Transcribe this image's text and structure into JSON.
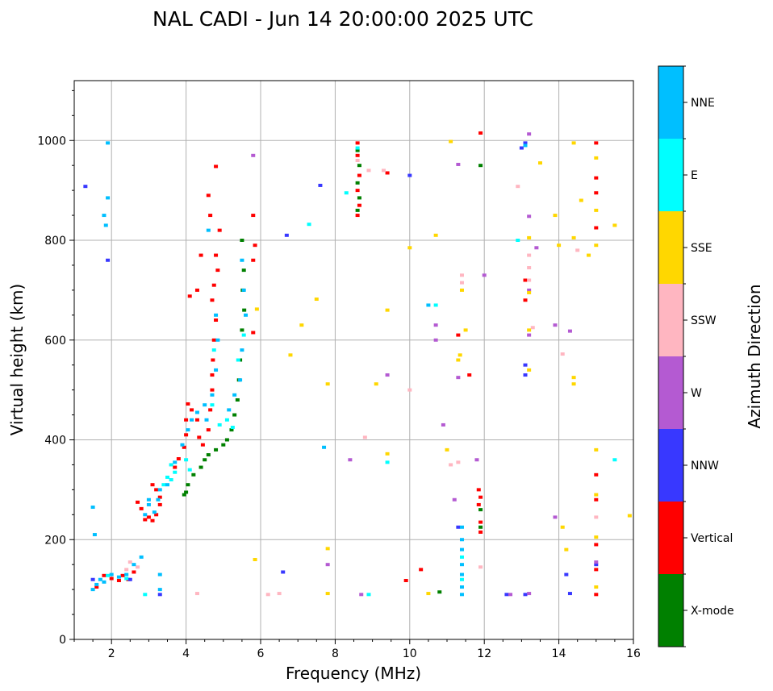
{
  "chart_data": {
    "type": "scatter",
    "title": "NAL CADI - Jun 14 20:00:00 2025 UTC",
    "xlabel": "Frequency (MHz)",
    "ylabel": "Virtual height (km)",
    "xlim": [
      1,
      16
    ],
    "ylim": [
      0,
      1120
    ],
    "xticks": [
      2,
      4,
      6,
      8,
      10,
      12,
      14,
      16
    ],
    "xtick_labels": [
      "2",
      "4",
      "6",
      "8",
      "10",
      "12",
      "14",
      "16"
    ],
    "yticks": [
      0,
      200,
      400,
      600,
      800,
      1000
    ],
    "ytick_labels": [
      "0",
      "200",
      "400",
      "600",
      "800",
      "1000"
    ],
    "grid": true,
    "colorbar": {
      "label": "Azimuth Direction",
      "categories": [
        {
          "name": "X-mode",
          "color": "#008000"
        },
        {
          "name": "Vertical",
          "color": "#ff0000"
        },
        {
          "name": "NNW",
          "color": "#3838ff"
        },
        {
          "name": "W",
          "color": "#b45ad2"
        },
        {
          "name": "SSW",
          "color": "#ffb6c1"
        },
        {
          "name": "SSE",
          "color": "#ffd700"
        },
        {
          "name": "E",
          "color": "#00ffff"
        },
        {
          "name": "NNE",
          "color": "#00bfff"
        }
      ]
    },
    "series": [
      {
        "name": "X-mode",
        "points": [
          [
            5.5,
            800
          ],
          [
            5.55,
            740
          ],
          [
            5.52,
            700
          ],
          [
            5.56,
            660
          ],
          [
            5.5,
            620
          ],
          [
            5.45,
            560
          ],
          [
            5.42,
            520
          ],
          [
            5.38,
            480
          ],
          [
            5.3,
            450
          ],
          [
            5.22,
            420
          ],
          [
            5.1,
            400
          ],
          [
            5.0,
            390
          ],
          [
            4.8,
            380
          ],
          [
            4.6,
            370
          ],
          [
            4.5,
            360
          ],
          [
            4.4,
            345
          ],
          [
            4.2,
            330
          ],
          [
            4.05,
            310
          ],
          [
            4.0,
            295
          ],
          [
            3.95,
            290
          ],
          [
            8.6,
            980
          ],
          [
            8.65,
            950
          ],
          [
            8.6,
            915
          ],
          [
            8.65,
            885
          ],
          [
            8.6,
            860
          ],
          [
            11.9,
            950
          ],
          [
            11.9,
            260
          ],
          [
            11.9,
            225
          ],
          [
            10.8,
            95
          ]
        ]
      },
      {
        "name": "Vertical",
        "points": [
          [
            2.9,
            240
          ],
          [
            3.0,
            245
          ],
          [
            3.1,
            238
          ],
          [
            3.2,
            250
          ],
          [
            3.3,
            270
          ],
          [
            2.8,
            262
          ],
          [
            2.7,
            275
          ],
          [
            3.3,
            285
          ],
          [
            3.2,
            300
          ],
          [
            3.1,
            310
          ],
          [
            3.7,
            345
          ],
          [
            3.8,
            362
          ],
          [
            3.95,
            385
          ],
          [
            4.0,
            410
          ],
          [
            4.0,
            440
          ],
          [
            4.05,
            472
          ],
          [
            4.15,
            460
          ],
          [
            4.3,
            440
          ],
          [
            4.35,
            405
          ],
          [
            4.45,
            390
          ],
          [
            4.6,
            420
          ],
          [
            4.65,
            460
          ],
          [
            4.7,
            500
          ],
          [
            4.7,
            530
          ],
          [
            4.72,
            560
          ],
          [
            4.75,
            600
          ],
          [
            4.8,
            640
          ],
          [
            4.7,
            680
          ],
          [
            4.75,
            710
          ],
          [
            4.85,
            740
          ],
          [
            4.8,
            770
          ],
          [
            4.9,
            820
          ],
          [
            4.65,
            850
          ],
          [
            4.6,
            890
          ],
          [
            4.8,
            948
          ],
          [
            4.4,
            770
          ],
          [
            4.1,
            688
          ],
          [
            4.3,
            700
          ],
          [
            1.8,
            128
          ],
          [
            2.0,
            122
          ],
          [
            2.2,
            118
          ],
          [
            2.3,
            128
          ],
          [
            2.6,
            135
          ],
          [
            2.45,
            120
          ],
          [
            1.6,
            105
          ],
          [
            8.6,
            995
          ],
          [
            8.6,
            970
          ],
          [
            8.65,
            930
          ],
          [
            8.6,
            900
          ],
          [
            8.65,
            870
          ],
          [
            8.6,
            850
          ],
          [
            9.4,
            935
          ],
          [
            15.0,
            995
          ],
          [
            15.0,
            925
          ],
          [
            15.0,
            895
          ],
          [
            15.0,
            825
          ],
          [
            15.0,
            330
          ],
          [
            15.0,
            280
          ],
          [
            15.0,
            190
          ],
          [
            15.0,
            140
          ],
          [
            15.0,
            90
          ],
          [
            11.85,
            300
          ],
          [
            11.9,
            285
          ],
          [
            11.85,
            270
          ],
          [
            11.9,
            235
          ],
          [
            11.9,
            215
          ],
          [
            11.9,
            1015
          ],
          [
            11.6,
            530
          ],
          [
            11.3,
            610
          ],
          [
            5.8,
            850
          ],
          [
            5.85,
            790
          ],
          [
            5.8,
            760
          ],
          [
            5.8,
            615
          ],
          [
            10.3,
            140
          ],
          [
            9.9,
            118
          ],
          [
            13.1,
            720
          ],
          [
            13.1,
            680
          ]
        ]
      },
      {
        "name": "NNW",
        "points": [
          [
            6.7,
            810
          ],
          [
            7.6,
            910
          ],
          [
            10.0,
            930
          ],
          [
            11.3,
            225
          ],
          [
            13.1,
            530
          ],
          [
            13.1,
            550
          ],
          [
            13.0,
            985
          ],
          [
            13.1,
            995
          ],
          [
            14.2,
            130
          ],
          [
            14.3,
            92
          ],
          [
            15.0,
            150
          ],
          [
            13.1,
            90
          ],
          [
            12.6,
            90
          ],
          [
            3.3,
            90
          ],
          [
            2.5,
            120
          ],
          [
            1.5,
            120
          ],
          [
            1.3,
            908
          ],
          [
            6.6,
            135
          ],
          [
            1.9,
            760
          ]
        ]
      },
      {
        "name": "W",
        "points": [
          [
            13.2,
            1013
          ],
          [
            13.2,
            848
          ],
          [
            13.4,
            785
          ],
          [
            13.2,
            700
          ],
          [
            13.2,
            610
          ],
          [
            13.9,
            630
          ],
          [
            14.3,
            618
          ],
          [
            10.7,
            630
          ],
          [
            11.3,
            525
          ],
          [
            10.9,
            430
          ],
          [
            10.7,
            600
          ],
          [
            12.0,
            730
          ],
          [
            8.4,
            360
          ],
          [
            9.4,
            530
          ],
          [
            11.2,
            280
          ],
          [
            13.9,
            245
          ],
          [
            13.2,
            92
          ],
          [
            12.7,
            90
          ],
          [
            8.7,
            90
          ],
          [
            15.0,
            155
          ],
          [
            5.8,
            970
          ],
          [
            11.3,
            952
          ],
          [
            11.8,
            360
          ],
          [
            7.8,
            150
          ]
        ]
      },
      {
        "name": "SSW",
        "points": [
          [
            12.9,
            908
          ],
          [
            13.2,
            770
          ],
          [
            13.2,
            745
          ],
          [
            13.3,
            625
          ],
          [
            13.2,
            720
          ],
          [
            14.1,
            572
          ],
          [
            11.4,
            730
          ],
          [
            11.4,
            715
          ],
          [
            11.1,
            350
          ],
          [
            10.0,
            500
          ],
          [
            8.8,
            405
          ],
          [
            8.9,
            940
          ],
          [
            8.6,
            960
          ],
          [
            15.0,
            245
          ],
          [
            14.5,
            780
          ],
          [
            11.9,
            145
          ],
          [
            4.3,
            92
          ],
          [
            6.5,
            92
          ],
          [
            6.2,
            90
          ],
          [
            2.7,
            145
          ],
          [
            2.5,
            155
          ],
          [
            2.4,
            140
          ],
          [
            9.3,
            940
          ],
          [
            11.3,
            355
          ]
        ]
      },
      {
        "name": "SSE",
        "points": [
          [
            15.0,
            965
          ],
          [
            15.0,
            860
          ],
          [
            15.0,
            790
          ],
          [
            15.0,
            380
          ],
          [
            15.0,
            290
          ],
          [
            15.0,
            205
          ],
          [
            15.0,
            105
          ],
          [
            14.8,
            770
          ],
          [
            14.6,
            880
          ],
          [
            14.4,
            995
          ],
          [
            13.5,
            955
          ],
          [
            13.2,
            805
          ],
          [
            13.2,
            695
          ],
          [
            13.2,
            620
          ],
          [
            13.2,
            540
          ],
          [
            13.9,
            850
          ],
          [
            14.1,
            225
          ],
          [
            14.2,
            180
          ],
          [
            14.4,
            525
          ],
          [
            14.4,
            512
          ],
          [
            15.5,
            830
          ],
          [
            15.9,
            248
          ],
          [
            10.0,
            785
          ],
          [
            10.7,
            810
          ],
          [
            11.3,
            560
          ],
          [
            11.35,
            570
          ],
          [
            11.1,
            998
          ],
          [
            11.0,
            380
          ],
          [
            9.4,
            660
          ],
          [
            9.1,
            512
          ],
          [
            9.4,
            372
          ],
          [
            7.8,
            512
          ],
          [
            7.1,
            630
          ],
          [
            6.8,
            570
          ],
          [
            7.5,
            682
          ],
          [
            5.85,
            160
          ],
          [
            5.9,
            662
          ],
          [
            7.8,
            92
          ],
          [
            7.8,
            182
          ],
          [
            10.5,
            92
          ],
          [
            11.4,
            700
          ],
          [
            11.5,
            620
          ],
          [
            14.0,
            790
          ],
          [
            14.4,
            805
          ]
        ]
      },
      {
        "name": "E",
        "points": [
          [
            3.6,
            350
          ],
          [
            3.7,
            335
          ],
          [
            3.5,
            325
          ],
          [
            3.4,
            310
          ],
          [
            3.6,
            320
          ],
          [
            4.0,
            360
          ],
          [
            4.1,
            340
          ],
          [
            5.1,
            440
          ],
          [
            5.25,
            425
          ],
          [
            4.9,
            430
          ],
          [
            5.4,
            560
          ],
          [
            5.55,
            610
          ],
          [
            4.7,
            470
          ],
          [
            4.75,
            580
          ],
          [
            15.5,
            360
          ],
          [
            12.9,
            800
          ],
          [
            8.3,
            895
          ],
          [
            7.3,
            832
          ],
          [
            9.4,
            355
          ],
          [
            11.4,
            165
          ],
          [
            11.4,
            120
          ],
          [
            10.7,
            670
          ],
          [
            8.6,
            985
          ],
          [
            1.9,
            128
          ],
          [
            2.4,
            122
          ],
          [
            2.9,
            90
          ],
          [
            8.9,
            90
          ]
        ]
      },
      {
        "name": "NNE",
        "points": [
          [
            3.0,
            270
          ],
          [
            3.15,
            255
          ],
          [
            3.25,
            280
          ],
          [
            3.3,
            300
          ],
          [
            3.5,
            310
          ],
          [
            3.7,
            355
          ],
          [
            3.9,
            390
          ],
          [
            4.05,
            420
          ],
          [
            4.15,
            440
          ],
          [
            4.3,
            455
          ],
          [
            4.5,
            470
          ],
          [
            4.55,
            440
          ],
          [
            4.7,
            490
          ],
          [
            4.8,
            540
          ],
          [
            4.85,
            600
          ],
          [
            4.8,
            650
          ],
          [
            4.6,
            820
          ],
          [
            5.15,
            460
          ],
          [
            5.3,
            490
          ],
          [
            5.45,
            520
          ],
          [
            5.5,
            580
          ],
          [
            5.6,
            650
          ],
          [
            5.55,
            700
          ],
          [
            5.5,
            760
          ],
          [
            1.5,
            100
          ],
          [
            1.6,
            110
          ],
          [
            1.7,
            120
          ],
          [
            1.8,
            115
          ],
          [
            2.0,
            130
          ],
          [
            2.2,
            125
          ],
          [
            2.4,
            130
          ],
          [
            2.6,
            150
          ],
          [
            2.8,
            165
          ],
          [
            3.3,
            130
          ],
          [
            3.3,
            100
          ],
          [
            3.0,
            280
          ],
          [
            2.9,
            250
          ],
          [
            11.4,
            225
          ],
          [
            11.4,
            200
          ],
          [
            11.4,
            180
          ],
          [
            11.4,
            150
          ],
          [
            11.4,
            130
          ],
          [
            11.4,
            105
          ],
          [
            11.4,
            90
          ],
          [
            10.5,
            670
          ],
          [
            13.1,
            990
          ],
          [
            7.7,
            385
          ],
          [
            1.9,
            995
          ],
          [
            1.9,
            885
          ],
          [
            1.8,
            850
          ],
          [
            1.85,
            830
          ],
          [
            1.55,
            210
          ],
          [
            1.5,
            265
          ]
        ]
      }
    ]
  }
}
